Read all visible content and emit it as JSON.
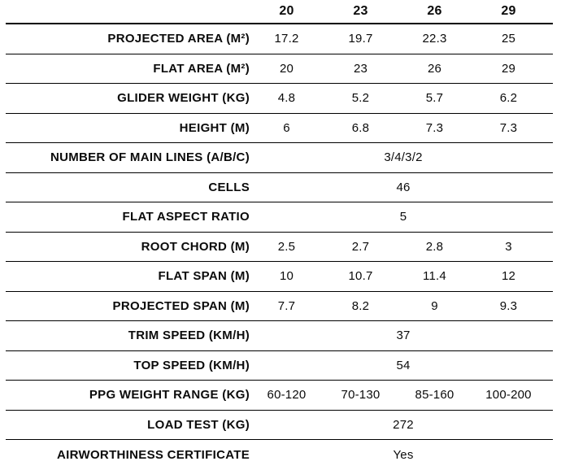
{
  "table": {
    "columns": [
      "20",
      "23",
      "26",
      "29"
    ],
    "rows": [
      {
        "label": "PROJECTED AREA (M²)",
        "values": [
          "17.2",
          "19.7",
          "22.3",
          "25"
        ]
      },
      {
        "label": "FLAT AREA (M²)",
        "values": [
          "20",
          "23",
          "26",
          "29"
        ]
      },
      {
        "label": "GLIDER WEIGHT (KG)",
        "values": [
          "4.8",
          "5.2",
          "5.7",
          "6.2"
        ]
      },
      {
        "label": "HEIGHT (M)",
        "values": [
          "6",
          "6.8",
          "7.3",
          "7.3"
        ]
      },
      {
        "label": "NUMBER OF MAIN LINES (A/B/C)",
        "span_value": "3/4/3/2"
      },
      {
        "label": "CELLS",
        "span_value": "46"
      },
      {
        "label": "FLAT ASPECT RATIO",
        "span_value": "5"
      },
      {
        "label": "ROOT CHORD (M)",
        "values": [
          "2.5",
          "2.7",
          "2.8",
          "3"
        ]
      },
      {
        "label": "FLAT SPAN (M)",
        "values": [
          "10",
          "10.7",
          "11.4",
          "12"
        ]
      },
      {
        "label": "PROJECTED SPAN (M)",
        "values": [
          "7.7",
          "8.2",
          "9",
          "9.3"
        ]
      },
      {
        "label": "TRIM SPEED (KM/H)",
        "span_value": "37"
      },
      {
        "label": "TOP SPEED (KM/H)",
        "span_value": "54"
      },
      {
        "label": "PPG WEIGHT RANGE (KG)",
        "values": [
          "60-120",
          "70-130",
          "85-160",
          "100-200"
        ]
      },
      {
        "label": "LOAD TEST (KG)",
        "span_value": "272"
      },
      {
        "label": "AIRWORTHINESS CERTIFICATE",
        "span_value": "Yes"
      }
    ],
    "colors": {
      "text": "#0b0b0b",
      "line": "#000000",
      "background": "#ffffff"
    }
  }
}
